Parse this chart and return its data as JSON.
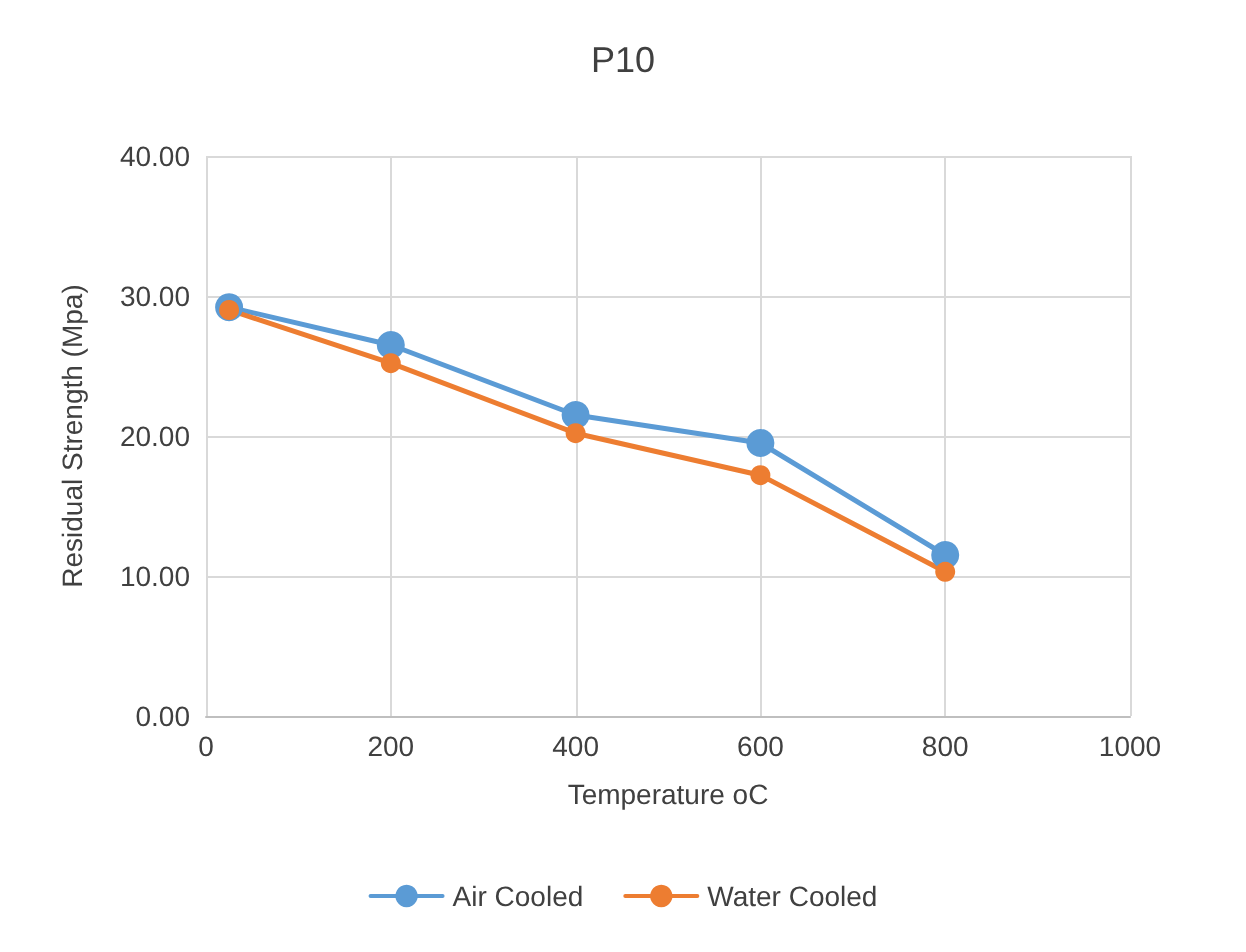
{
  "chart_data": {
    "type": "line",
    "title": "P10",
    "xlabel": "Temperature oC",
    "ylabel": "Residual Strength (Mpa)",
    "x": [
      25,
      200,
      400,
      600,
      800
    ],
    "series": [
      {
        "name": "Air Cooled",
        "color": "#5b9bd5",
        "values": [
          29.2,
          26.5,
          21.5,
          19.5,
          11.5
        ]
      },
      {
        "name": "Water Cooled",
        "color": "#ed7d31",
        "values": [
          29.0,
          25.2,
          20.2,
          17.2,
          10.3
        ]
      }
    ],
    "xlim": [
      0,
      1000
    ],
    "xticks": [
      0,
      200,
      400,
      600,
      800,
      1000
    ],
    "ylim": [
      0,
      40
    ],
    "yticks": [
      {
        "value": 0,
        "label": "0.00"
      },
      {
        "value": 10,
        "label": "10.00"
      },
      {
        "value": 20,
        "label": "20.00"
      },
      {
        "value": 30,
        "label": "30.00"
      },
      {
        "value": 40,
        "label": "40.00"
      }
    ],
    "grid": true,
    "legend": "bottom",
    "marker": "circle",
    "line_style": "solid"
  }
}
